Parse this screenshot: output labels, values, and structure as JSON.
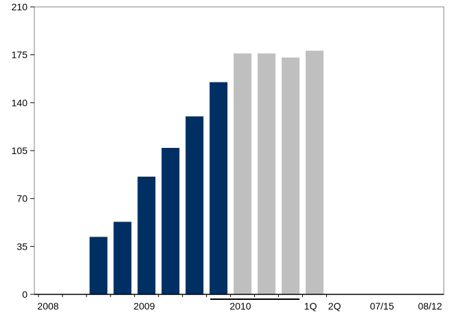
{
  "chart_data": {
    "type": "bar",
    "title": "",
    "xlabel": "",
    "ylabel": "",
    "ylim": [
      0,
      210
    ],
    "yticks": [
      0,
      35,
      70,
      105,
      140,
      175,
      210
    ],
    "ytick_labels": [
      "0",
      "35",
      "70",
      "105",
      "140",
      "175",
      "210"
    ],
    "grid": false,
    "legend": "none",
    "categories": [
      "2008",
      "2009",
      "2010",
      "",
      "",
      "",
      "1Q",
      "2Q",
      "07/15",
      "",
      "",
      "08/12"
    ],
    "values": [
      0,
      0,
      42,
      53,
      86,
      107,
      130,
      155,
      176,
      176,
      173,
      178
    ],
    "bar_colors": [
      "#002f63",
      "#002f63",
      "#002f63",
      "#002f63",
      "#002f63",
      "#002f63",
      "#002f63",
      "#002f63",
      "#bfbfbf",
      "#bfbfbf",
      "#bfbfbf",
      "#bfbfbf"
    ],
    "x_labels": [
      "2008",
      "2009",
      "2010",
      "1Q",
      "2Q",
      "07/15",
      "08/12"
    ],
    "group_underline_label": "2010",
    "colors": {
      "historical": "#002f63",
      "recent": "#bfbfbf",
      "axis": "#000000"
    }
  }
}
